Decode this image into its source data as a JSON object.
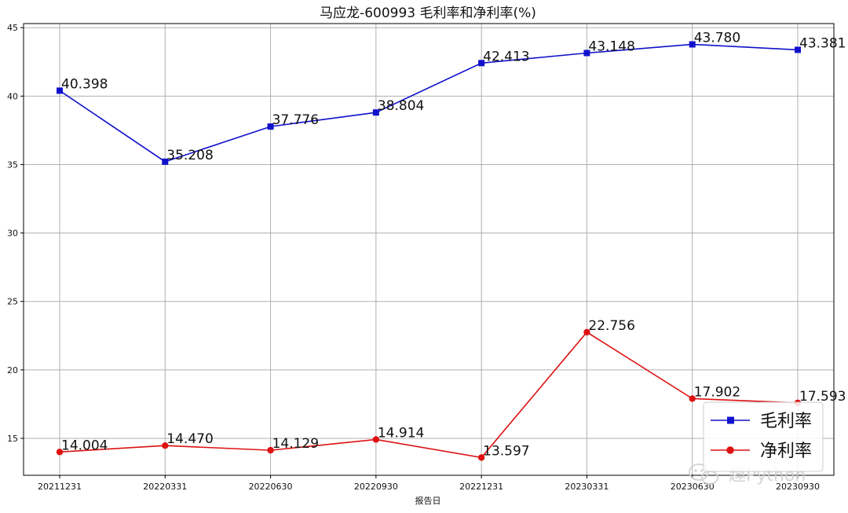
{
  "chart_data": {
    "type": "line",
    "title": "马应龙-600993 毛利率和净利率(%)",
    "xlabel": "报告日",
    "ylabel": "",
    "categories": [
      "20211231",
      "20220331",
      "20220630",
      "20220930",
      "20221231",
      "20230331",
      "20230630",
      "20230930"
    ],
    "ylim": [
      12.3,
      45.3
    ],
    "yticks": [
      15,
      20,
      25,
      30,
      35,
      40,
      45
    ],
    "grid": true,
    "legend_position": "bottom-right",
    "series": [
      {
        "name": "毛利率",
        "color": "#1111cc",
        "marker": "square",
        "values": [
          40.398,
          35.208,
          37.776,
          38.804,
          42.413,
          43.148,
          43.78,
          43.381
        ],
        "labels": [
          "40.398",
          "35.208",
          "37.776",
          "38.804",
          "42.413",
          "43.148",
          "43.780",
          "43.381"
        ]
      },
      {
        "name": "净利率",
        "color": "#dd1111",
        "marker": "circle",
        "values": [
          14.004,
          14.47,
          14.129,
          14.914,
          13.597,
          22.756,
          17.902,
          17.593
        ],
        "labels": [
          "14.004",
          "14.470",
          "14.129",
          "14.914",
          "13.597",
          "22.756",
          "17.902",
          "17.593"
        ]
      }
    ]
  },
  "watermark": {
    "icon": "wechat-icon",
    "text": "趣Python"
  }
}
